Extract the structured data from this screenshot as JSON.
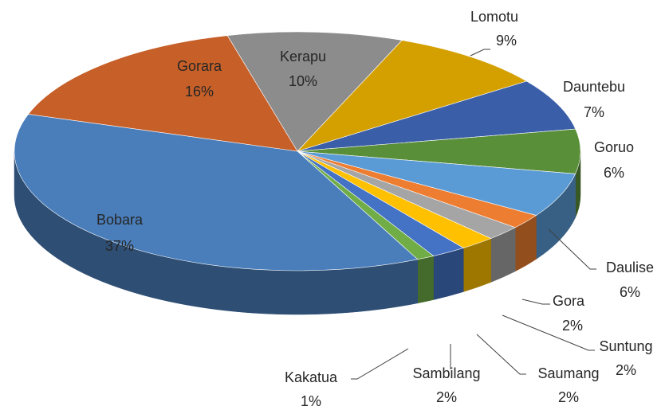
{
  "chart_data": {
    "type": "pie3d",
    "categories": [
      "Kerapu",
      "Lomotu",
      "Dauntebu",
      "Goruo",
      "Daulise",
      "Gora",
      "Suntung",
      "Saumang",
      "Sambilang",
      "Kakatua",
      "Bobara",
      "Gorara"
    ],
    "values": [
      10,
      9,
      7,
      6,
      6,
      2,
      2,
      2,
      2,
      1,
      37,
      16
    ],
    "value_labels": [
      "10%",
      "9%",
      "7%",
      "6%",
      "6%",
      "2%",
      "2%",
      "2%",
      "2%",
      "1%",
      "37%",
      "16%"
    ],
    "colors": [
      "#8c8c8c",
      "#d4a000",
      "#3a5fa8",
      "#5a8f3a",
      "#5b9bd5",
      "#ed7d31",
      "#a5a5a5",
      "#ffc000",
      "#4472c4",
      "#70ad47",
      "#4a7ebb",
      "#c65f28"
    ]
  }
}
